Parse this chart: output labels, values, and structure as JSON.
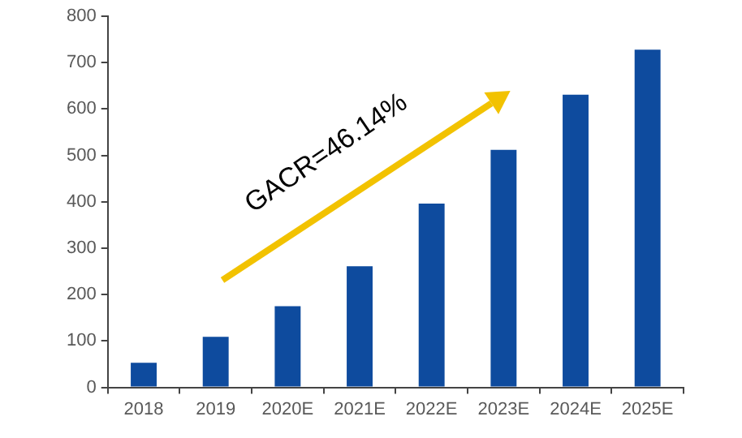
{
  "chart_data": {
    "type": "bar",
    "categories": [
      "2018",
      "2019",
      "2020E",
      "2021E",
      "2022E",
      "2023E",
      "2024E",
      "2025E"
    ],
    "values": [
      53,
      109,
      175,
      261,
      396,
      512,
      631,
      728
    ],
    "color": "#0e4b9e",
    "ylim": [
      0,
      800
    ],
    "yticks": [
      0,
      100,
      200,
      300,
      400,
      500,
      600,
      700,
      800
    ],
    "grid": false,
    "legend": false,
    "annotations": [
      "GACR=46.14%"
    ]
  }
}
